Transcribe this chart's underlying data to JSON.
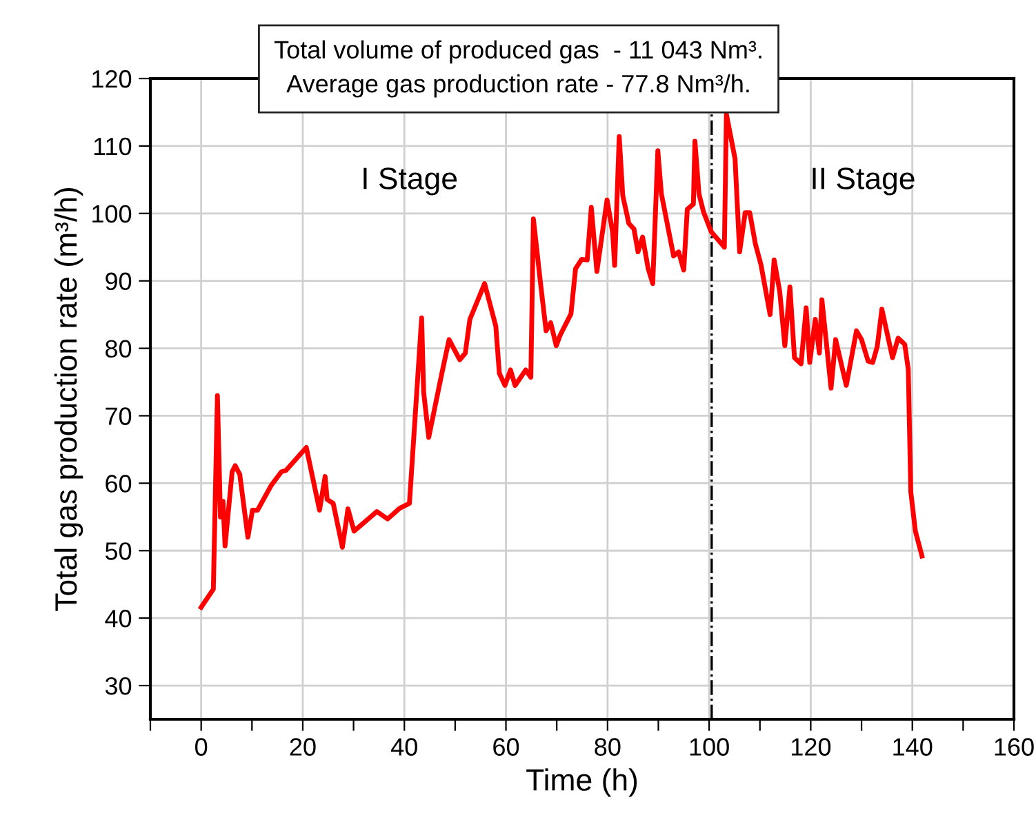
{
  "chart_data": {
    "type": "line",
    "xlabel": "Time (h)",
    "ylabel": "Total gas production rate (m³/h)",
    "annotations": [
      "Total volume of produced gas  - 11 043 Nm³.",
      "Average gas production rate - 77.8 Nm³/h.",
      "I Stage",
      "II Stage"
    ],
    "series": [
      {
        "color": "#ff0000",
        "x": [
          0,
          2.4,
          3.2,
          3.8,
          4.3,
          4.7,
          6.1,
          6.7,
          7.6,
          9.2,
          10.1,
          11.1,
          13.8,
          15.8,
          16.7,
          20.7,
          23.3,
          24.4,
          24.8,
          26,
          27.8,
          28.9,
          30.1,
          34.6,
          36.7,
          39.1,
          41,
          43.4,
          43.8,
          44.8,
          47.3,
          48.8,
          50.9,
          52,
          52.9,
          55.8,
          58,
          58.7,
          59.8,
          60.9,
          61.8,
          63.9,
          64.9,
          65.4,
          66.8,
          67.9,
          68.8,
          69.9,
          70.7,
          72.8,
          73.7,
          74.9,
          76,
          76.8,
          77.9,
          79.9,
          81,
          81.4,
          82.3,
          83,
          84.2,
          85.2,
          86,
          86.9,
          88,
          88.9,
          89.9,
          90.6,
          93,
          94,
          95,
          95.7,
          96.9,
          97.2,
          98,
          98.9,
          100.4,
          103,
          103.4,
          105.1,
          106,
          107.1,
          108,
          109.1,
          110.2,
          112,
          112.8,
          113.9,
          114.9,
          115.9,
          116.8,
          118.1,
          119.1,
          119.8,
          120.9,
          121.7,
          122.2,
          124,
          124.9,
          127,
          129,
          130,
          131.3,
          132.2,
          133.1,
          134,
          136.1,
          137.2,
          138.5,
          139.2,
          139.7,
          140.6,
          141.9
        ],
        "values": [
          41.6,
          44.3,
          73.0,
          55,
          57.3,
          50.7,
          61.7,
          62.6,
          61.3,
          52,
          56,
          56,
          59.7,
          61.7,
          61.9,
          65.3,
          56,
          61,
          57.6,
          57,
          50.5,
          56.2,
          52.9,
          55.8,
          54.7,
          56.3,
          57,
          84.5,
          73.5,
          66.8,
          76,
          81.3,
          78.3,
          79.3,
          84.3,
          89.6,
          83.3,
          76.3,
          74.5,
          76.8,
          74.5,
          76.8,
          75.7,
          99.2,
          89.7,
          82.6,
          83.8,
          80.4,
          82,
          85.1,
          91.8,
          93.2,
          93.1,
          100.9,
          91.4,
          102,
          97.2,
          92.3,
          111.4,
          102.6,
          98.5,
          97.7,
          94.3,
          96.5,
          91.8,
          89.6,
          109.3,
          102.9,
          93.7,
          94.3,
          91.6,
          100.6,
          101.4,
          110.7,
          102.9,
          100.2,
          97.3,
          95,
          114.7,
          108.1,
          94.3,
          100.1,
          100.1,
          95.5,
          92.4,
          85,
          93.1,
          88.4,
          80.4,
          89.1,
          78.6,
          77.7,
          86,
          77.9,
          84.3,
          79.3,
          87.2,
          74.1,
          81.3,
          74.5,
          82.6,
          81.3,
          78.1,
          77.9,
          80.3,
          85.8,
          78.6,
          81.5,
          80.6,
          76.9,
          58.7,
          52.9,
          49.2
        ]
      }
    ],
    "xlim": [
      -10,
      160
    ],
    "xticks": [
      {
        "value": -10,
        "label": null
      },
      0,
      {
        "value": 10,
        "label": null
      },
      20,
      {
        "value": 30,
        "label": null
      },
      40,
      {
        "value": 50,
        "label": null
      },
      60,
      {
        "value": 70,
        "label": null
      },
      80,
      {
        "value": 90,
        "label": null
      },
      100,
      {
        "value": 110,
        "label": null
      },
      120,
      {
        "value": 130,
        "label": null
      },
      140,
      {
        "value": 150,
        "label": null
      },
      160
    ],
    "ylim": [
      25,
      120
    ],
    "yticks": [
      30,
      40,
      50,
      60,
      70,
      80,
      90,
      100,
      110,
      120
    ],
    "grid": true,
    "legend": false,
    "marker": "none",
    "line_style": "solid",
    "ref_lines": [
      {
        "axis": "x",
        "value": 100.5,
        "color": "#000000",
        "line_style": "dashdot"
      }
    ]
  }
}
